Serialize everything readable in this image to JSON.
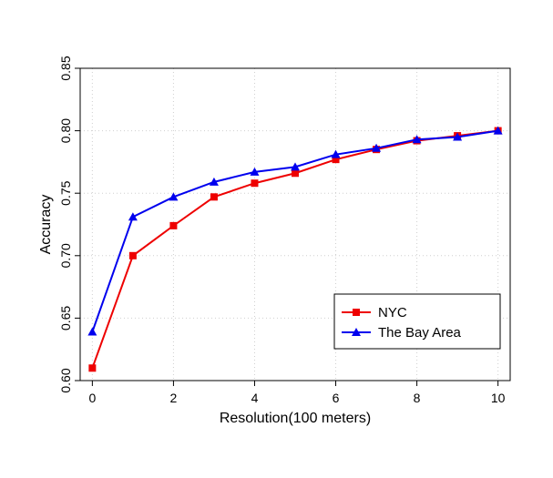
{
  "chart_data": {
    "type": "line",
    "xlabel": "Resolution(100 meters)",
    "ylabel": "Accuracy",
    "xlim": [
      -0.3,
      10.3
    ],
    "ylim": [
      0.6,
      0.85
    ],
    "x_ticks": [
      0,
      2,
      4,
      6,
      8,
      10
    ],
    "x_tick_labels": [
      "0",
      "2",
      "4",
      "6",
      "8",
      "10"
    ],
    "y_ticks": [
      0.6,
      0.65,
      0.7,
      0.75,
      0.8,
      0.85
    ],
    "y_tick_labels": [
      "0.60",
      "0.65",
      "0.70",
      "0.75",
      "0.80",
      "0.85"
    ],
    "grid": true,
    "legend_position": "bottom-right",
    "x": [
      0,
      1,
      2,
      3,
      4,
      5,
      6,
      7,
      8,
      9,
      10
    ],
    "series": [
      {
        "name": "NYC",
        "color": "#ee0000",
        "marker": "square",
        "values": [
          0.61,
          0.7,
          0.724,
          0.747,
          0.758,
          0.766,
          0.777,
          0.785,
          0.792,
          0.796,
          0.8
        ]
      },
      {
        "name": "The Bay Area",
        "color": "#0000ee",
        "marker": "triangle",
        "values": [
          0.639,
          0.731,
          0.747,
          0.759,
          0.767,
          0.771,
          0.781,
          0.786,
          0.793,
          0.795,
          0.8
        ]
      }
    ]
  }
}
